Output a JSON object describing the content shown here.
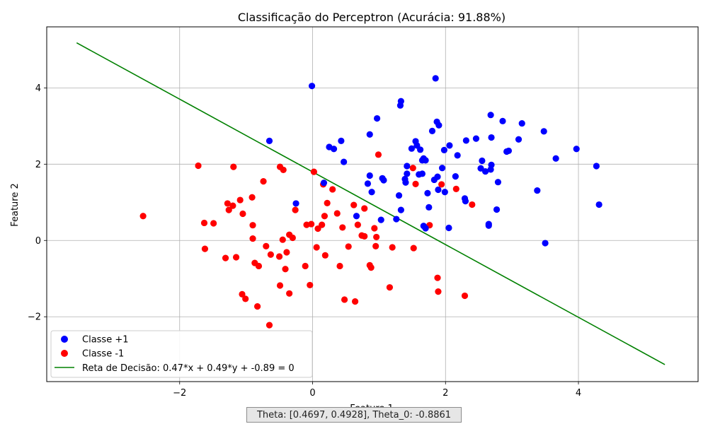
{
  "chart_data": {
    "type": "scatter",
    "title": "Classificação do Perceptron (Acurácia: 91.88%)",
    "xlabel": "Feature 1",
    "ylabel": "Feature 2",
    "xlim": [
      -4.0,
      5.8
    ],
    "ylim": [
      -3.7,
      5.6
    ],
    "xticks": [
      -2,
      0,
      2,
      4
    ],
    "yticks": [
      -2,
      0,
      2,
      4
    ],
    "xtick_labels": [
      "−2",
      "0",
      "2",
      "4"
    ],
    "ytick_labels": [
      "−2",
      "0",
      "2",
      "4"
    ],
    "grid": true,
    "legend_position": "lower-left",
    "series": [
      {
        "name": "Classe +1",
        "color": "#0000ff",
        "points": [
          [
            -0.01,
            4.05
          ],
          [
            -0.65,
            2.61
          ],
          [
            -0.25,
            0.97
          ],
          [
            0.17,
            1.51
          ],
          [
            0.25,
            2.45
          ],
          [
            0.32,
            2.4
          ],
          [
            0.43,
            2.61
          ],
          [
            0.47,
            2.06
          ],
          [
            0.66,
            0.64
          ],
          [
            0.83,
            1.49
          ],
          [
            0.86,
            2.78
          ],
          [
            0.86,
            1.7
          ],
          [
            0.89,
            1.27
          ],
          [
            0.97,
            3.2
          ],
          [
            1.03,
            0.54
          ],
          [
            1.05,
            1.63
          ],
          [
            1.07,
            1.58
          ],
          [
            1.26,
            0.56
          ],
          [
            1.3,
            1.18
          ],
          [
            1.32,
            3.54
          ],
          [
            1.33,
            3.65
          ],
          [
            1.33,
            0.8
          ],
          [
            1.39,
            1.61
          ],
          [
            1.4,
            1.52
          ],
          [
            1.42,
            1.95
          ],
          [
            1.42,
            1.75
          ],
          [
            1.49,
            2.41
          ],
          [
            1.55,
            2.6
          ],
          [
            1.57,
            2.49
          ],
          [
            1.6,
            1.73
          ],
          [
            1.62,
            2.38
          ],
          [
            1.65,
            2.1
          ],
          [
            1.65,
            1.75
          ],
          [
            1.67,
            2.15
          ],
          [
            1.67,
            0.38
          ],
          [
            1.7,
            2.1
          ],
          [
            1.7,
            0.32
          ],
          [
            1.73,
            1.24
          ],
          [
            1.75,
            0.87
          ],
          [
            1.8,
            2.87
          ],
          [
            1.83,
            1.59
          ],
          [
            1.85,
            4.25
          ],
          [
            1.87,
            3.11
          ],
          [
            1.88,
            1.67
          ],
          [
            1.89,
            1.33
          ],
          [
            1.9,
            3.02
          ],
          [
            1.95,
            1.9
          ],
          [
            1.98,
            2.37
          ],
          [
            1.99,
            1.27
          ],
          [
            2.05,
            0.33
          ],
          [
            2.06,
            2.49
          ],
          [
            2.15,
            1.68
          ],
          [
            2.18,
            2.23
          ],
          [
            2.29,
            1.1
          ],
          [
            2.3,
            1.03
          ],
          [
            2.31,
            2.62
          ],
          [
            2.46,
            2.67
          ],
          [
            2.53,
            1.89
          ],
          [
            2.55,
            2.09
          ],
          [
            2.6,
            1.81
          ],
          [
            2.65,
            0.43
          ],
          [
            2.65,
            0.39
          ],
          [
            2.68,
            3.29
          ],
          [
            2.68,
            1.86
          ],
          [
            2.69,
            2.7
          ],
          [
            2.69,
            1.98
          ],
          [
            2.77,
            0.81
          ],
          [
            2.79,
            1.53
          ],
          [
            2.86,
            3.13
          ],
          [
            2.92,
            2.33
          ],
          [
            2.95,
            2.35
          ],
          [
            3.1,
            2.65
          ],
          [
            3.15,
            3.07
          ],
          [
            3.38,
            1.31
          ],
          [
            3.48,
            2.86
          ],
          [
            3.5,
            -0.07
          ],
          [
            3.66,
            2.15
          ],
          [
            3.97,
            2.4
          ],
          [
            4.27,
            1.95
          ],
          [
            4.31,
            0.94
          ]
        ]
      },
      {
        "name": "Classe -1",
        "color": "#ff0000",
        "points": [
          [
            -2.55,
            0.64
          ],
          [
            -1.72,
            1.96
          ],
          [
            -1.63,
            0.46
          ],
          [
            -1.62,
            -0.22
          ],
          [
            -1.49,
            0.45
          ],
          [
            -1.31,
            -0.46
          ],
          [
            -1.28,
            0.97
          ],
          [
            -1.26,
            0.8
          ],
          [
            -1.2,
            0.91
          ],
          [
            -1.19,
            1.93
          ],
          [
            -1.15,
            -0.44
          ],
          [
            -1.09,
            1.06
          ],
          [
            -1.06,
            -1.41
          ],
          [
            -1.05,
            0.7
          ],
          [
            -1.01,
            -1.53
          ],
          [
            -0.91,
            1.13
          ],
          [
            -0.9,
            0.4
          ],
          [
            -0.9,
            0.05
          ],
          [
            -0.87,
            -0.59
          ],
          [
            -0.83,
            -1.73
          ],
          [
            -0.81,
            -0.67
          ],
          [
            -0.74,
            1.55
          ],
          [
            -0.7,
            -0.15
          ],
          [
            -0.65,
            -2.22
          ],
          [
            -0.63,
            -0.37
          ],
          [
            -0.5,
            -0.42
          ],
          [
            -0.49,
            -1.18
          ],
          [
            -0.49,
            1.93
          ],
          [
            -0.45,
            0.02
          ],
          [
            -0.44,
            1.85
          ],
          [
            -0.41,
            -0.75
          ],
          [
            -0.39,
            -0.31
          ],
          [
            -0.35,
            0.15
          ],
          [
            -0.35,
            -1.39
          ],
          [
            -0.3,
            0.07
          ],
          [
            -0.26,
            0.8
          ],
          [
            -0.11,
            -0.67
          ],
          [
            -0.09,
            0.41
          ],
          [
            -0.04,
            -1.17
          ],
          [
            -0.02,
            0.43
          ],
          [
            0.02,
            1.8
          ],
          [
            0.06,
            -0.18
          ],
          [
            0.08,
            0.31
          ],
          [
            0.14,
            0.41
          ],
          [
            0.16,
            1.47
          ],
          [
            0.18,
            0.64
          ],
          [
            0.19,
            -0.39
          ],
          [
            0.22,
            0.98
          ],
          [
            0.3,
            1.34
          ],
          [
            0.37,
            0.71
          ],
          [
            0.41,
            -0.67
          ],
          [
            0.45,
            0.34
          ],
          [
            0.48,
            -1.55
          ],
          [
            0.54,
            -0.16
          ],
          [
            0.62,
            0.93
          ],
          [
            0.64,
            -1.6
          ],
          [
            0.68,
            0.41
          ],
          [
            0.74,
            0.13
          ],
          [
            0.78,
            0.11
          ],
          [
            0.78,
            0.84
          ],
          [
            0.86,
            -0.65
          ],
          [
            0.88,
            -0.71
          ],
          [
            0.93,
            0.32
          ],
          [
            0.95,
            -0.15
          ],
          [
            0.96,
            0.09
          ],
          [
            0.99,
            2.25
          ],
          [
            1.16,
            -1.23
          ],
          [
            1.2,
            -0.18
          ],
          [
            1.51,
            1.9
          ],
          [
            1.52,
            -0.2
          ],
          [
            1.55,
            1.48
          ],
          [
            1.76,
            0.4
          ],
          [
            1.88,
            -0.98
          ],
          [
            1.89,
            -1.34
          ],
          [
            1.94,
            1.47
          ],
          [
            2.16,
            1.35
          ],
          [
            2.29,
            -1.45
          ],
          [
            2.4,
            0.94
          ]
        ]
      }
    ],
    "decision_line": {
      "name": "Reta de Decisão: 0.47*x + 0.49*y + -0.89 = 0",
      "color": "#008000",
      "theta": [
        0.4697,
        0.4928
      ],
      "theta_0": -0.8861,
      "x_range": [
        -3.55,
        5.3
      ]
    }
  },
  "caption": "Theta: [0.4697, 0.4928], Theta_0: -0.8861"
}
